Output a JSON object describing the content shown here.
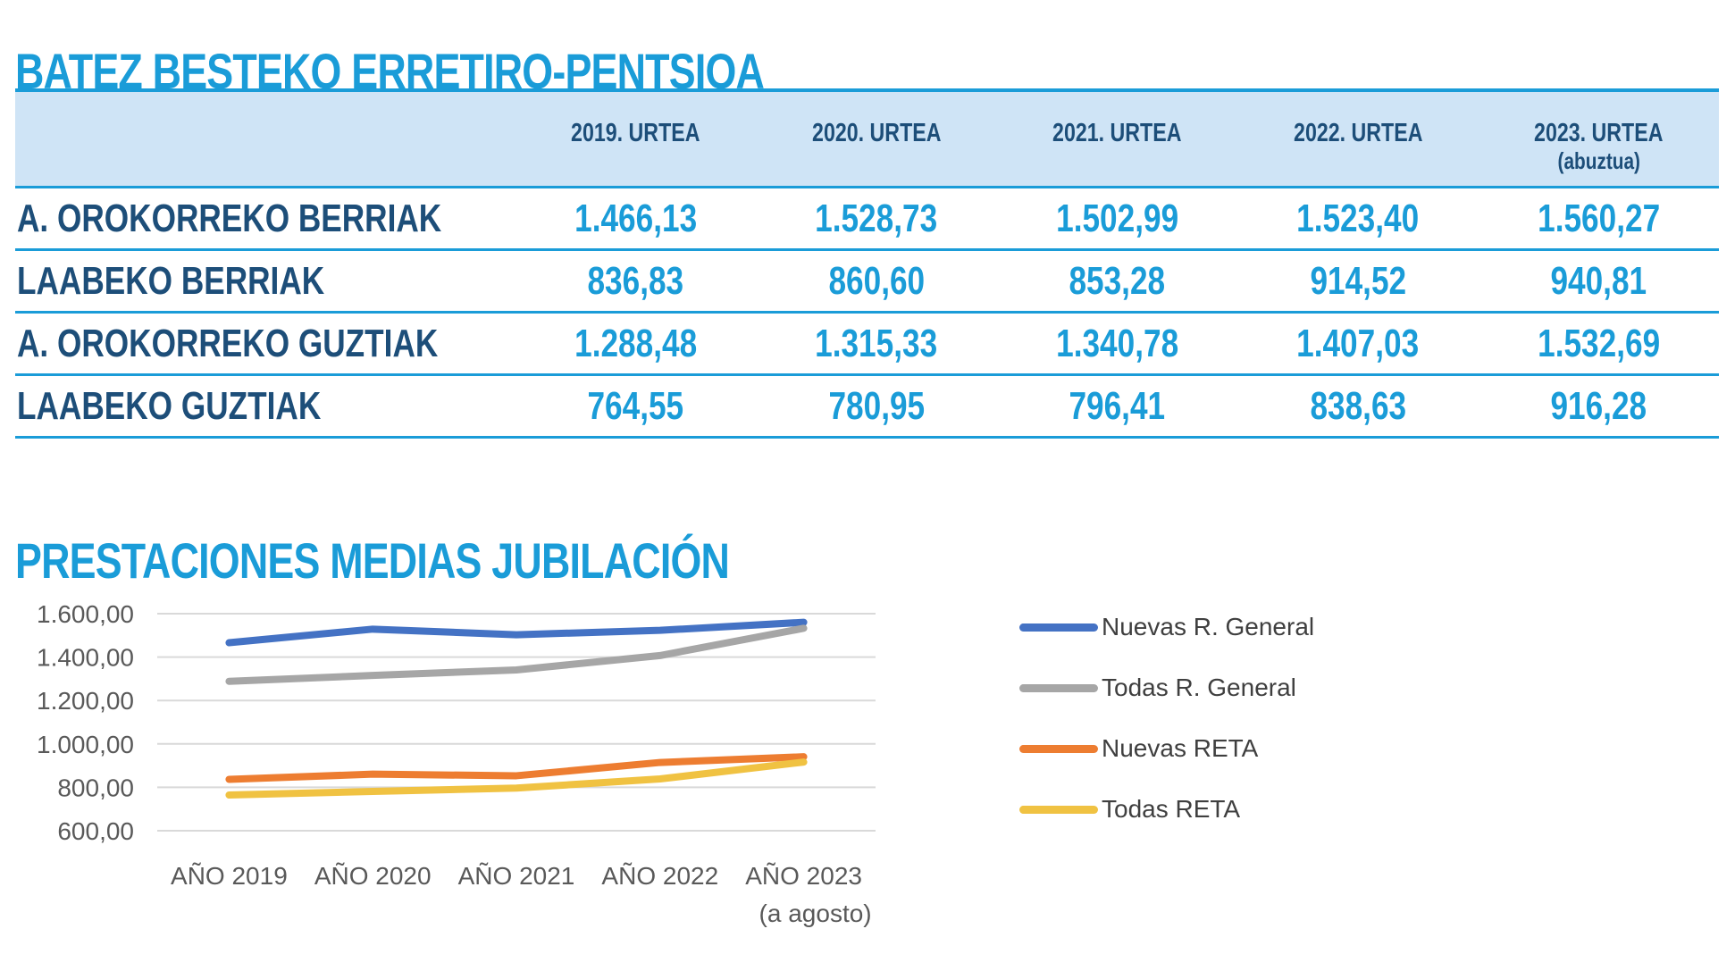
{
  "section1": {
    "title": "BATEZ BESTEKO ERRETIRO-PENTSIOA",
    "table": {
      "columns": [
        {
          "line1": "2019. URTEA",
          "line2": ""
        },
        {
          "line1": "2020. URTEA",
          "line2": ""
        },
        {
          "line1": "2021. URTEA",
          "line2": ""
        },
        {
          "line1": "2022. URTEA",
          "line2": ""
        },
        {
          "line1": "2023. URTEA",
          "line2": "(abuztua)"
        }
      ],
      "rows": [
        {
          "label": "A. OROKORREKO BERRIAK",
          "values": [
            "1.466,13",
            "1.528,73",
            "1.502,99",
            "1.523,40",
            "1.560,27"
          ]
        },
        {
          "label": "LAABEKO BERRIAK",
          "values": [
            "836,83",
            "860,60",
            "853,28",
            "914,52",
            "940,81"
          ]
        },
        {
          "label": "A. OROKORREKO GUZTIAK",
          "values": [
            "1.288,48",
            "1.315,33",
            "1.340,78",
            "1.407,03",
            "1.532,69"
          ]
        },
        {
          "label": "LAABEKO GUZTIAK",
          "values": [
            "764,55",
            "780,95",
            "796,41",
            "838,63",
            "916,28"
          ]
        }
      ]
    }
  },
  "section2": {
    "title": "PRESTACIONES MEDIAS JUBILACIÓN"
  },
  "chart_data": {
    "type": "line",
    "categories": [
      "AÑO 2019",
      "AÑO 2020",
      "AÑO 2021",
      "AÑO 2022",
      "AÑO 2023"
    ],
    "x_note": "(a agosto)",
    "series": [
      {
        "name": "Nuevas R. General",
        "color": "#4472C4",
        "values": [
          1466.13,
          1528.73,
          1502.99,
          1523.4,
          1560.27
        ]
      },
      {
        "name": "Todas R. General",
        "color": "#A6A6A6",
        "values": [
          1288.48,
          1315.33,
          1340.78,
          1407.03,
          1532.69
        ]
      },
      {
        "name": "Nuevas RETA",
        "color": "#ED7D31",
        "values": [
          836.83,
          860.6,
          853.28,
          914.52,
          940.81
        ]
      },
      {
        "name": "Todas RETA",
        "color": "#F0C242",
        "values": [
          764.55,
          780.95,
          796.41,
          838.63,
          916.28
        ]
      }
    ],
    "ylim": [
      600,
      1600
    ],
    "ytick_values": [
      1600,
      1400,
      1200,
      1000,
      800,
      600
    ],
    "ytick_labels": [
      "1.600,00",
      "1.400,00",
      "1.200,00",
      "1.000,00",
      "800,00",
      "600,00"
    ],
    "grid": true,
    "legend_position": "right"
  },
  "colors": {
    "accent_blue": "#1A9CD8",
    "navy": "#1D4E79",
    "header_bg": "#CFE4F6",
    "gridline": "#D9D9D9",
    "axis_text": "#595959",
    "legend_text": "#3F3F3F"
  }
}
